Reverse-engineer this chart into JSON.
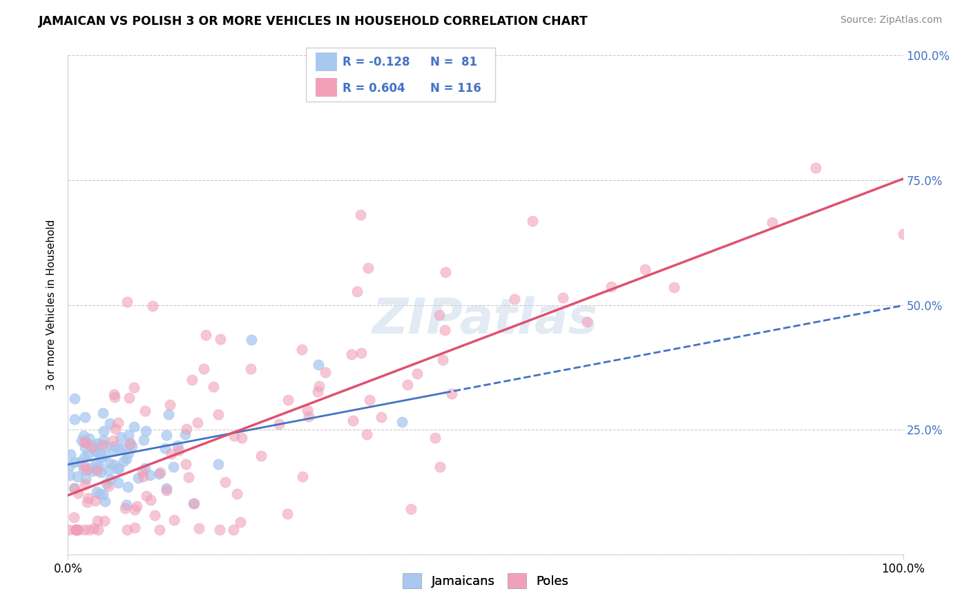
{
  "title": "JAMAICAN VS POLISH 3 OR MORE VEHICLES IN HOUSEHOLD CORRELATION CHART",
  "source_text": "Source: ZipAtlas.com",
  "ylabel": "3 or more Vehicles in Household",
  "watermark": "ZIPatlas",
  "blue_color": "#A8C8F0",
  "pink_color": "#F0A0B8",
  "blue_line_color": "#4472C4",
  "pink_line_color": "#E05070",
  "r_blue": -0.128,
  "r_pink": 0.604,
  "n_blue": 81,
  "n_pink": 116,
  "xlim": [
    0,
    100
  ],
  "ylim": [
    0,
    100
  ],
  "ytick_positions": [
    0,
    25,
    50,
    75,
    100
  ],
  "background_color": "#ffffff",
  "grid_color": "#c8c8c8"
}
